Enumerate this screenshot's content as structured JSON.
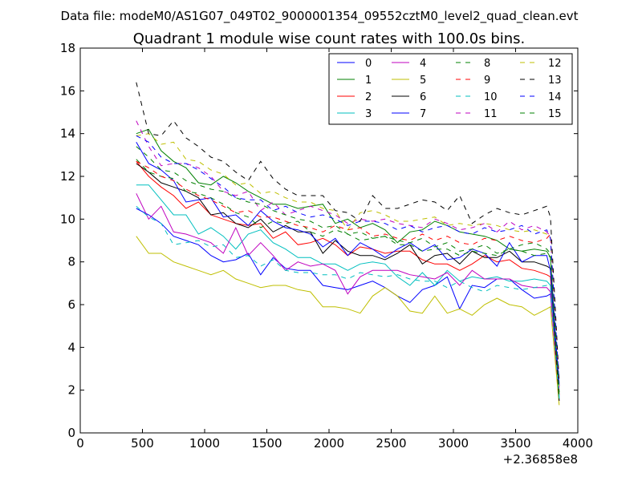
{
  "suptitle": "Data file: modeM0/AS1G07_049T02_9000001354_09552cztM0_level2_quad_clean.evt",
  "chart_data": {
    "type": "line",
    "title": "Quadrant 1 module wise count rates with 100.0s bins.",
    "xlabel": "",
    "ylabel": "",
    "x_offset_label": "+2.36858e8",
    "xlim": [
      0,
      4000
    ],
    "ylim": [
      0,
      18
    ],
    "xticks": [
      0,
      500,
      1000,
      1500,
      2000,
      2500,
      3000,
      3500,
      4000
    ],
    "yticks": [
      0,
      2,
      4,
      6,
      8,
      10,
      12,
      14,
      16,
      18
    ],
    "grid": false,
    "legend_position": "top-right",
    "x": [
      450,
      550,
      650,
      750,
      850,
      950,
      1050,
      1150,
      1250,
      1350,
      1450,
      1550,
      1650,
      1750,
      1850,
      1950,
      2050,
      2150,
      2250,
      2350,
      2450,
      2550,
      2650,
      2750,
      2850,
      2950,
      3050,
      3150,
      3250,
      3350,
      3450,
      3550,
      3650,
      3750,
      3780,
      3850
    ],
    "series": [
      {
        "name": "0",
        "color": "#0000ff",
        "dash": "solid",
        "values": [
          10.5,
          10.2,
          9.8,
          9.2,
          9.0,
          8.8,
          8.3,
          8.0,
          8.1,
          8.4,
          7.4,
          8.2,
          7.7,
          7.6,
          7.6,
          6.9,
          6.8,
          6.7,
          6.9,
          7.1,
          6.8,
          6.4,
          6.1,
          6.7,
          6.9,
          7.3,
          5.8,
          6.9,
          6.8,
          7.2,
          7.2,
          6.7,
          6.3,
          6.4,
          6.5,
          1.7
        ]
      },
      {
        "name": "1",
        "color": "#008000",
        "dash": "solid",
        "values": [
          14.0,
          14.2,
          13.2,
          12.7,
          12.4,
          11.7,
          11.6,
          12.0,
          11.7,
          11.3,
          11.0,
          10.7,
          10.7,
          10.5,
          10.6,
          10.7,
          9.8,
          10.0,
          9.6,
          9.8,
          9.5,
          8.9,
          9.4,
          9.5,
          9.9,
          9.7,
          9.4,
          9.3,
          9.2,
          9.0,
          8.6,
          8.5,
          8.6,
          8.5,
          8.2,
          1.9
        ]
      },
      {
        "name": "2",
        "color": "#ff0000",
        "dash": "solid",
        "values": [
          12.7,
          12.0,
          11.5,
          11.1,
          10.5,
          10.8,
          10.2,
          10.0,
          9.8,
          9.7,
          9.8,
          9.1,
          9.4,
          8.8,
          8.9,
          9.1,
          8.8,
          8.3,
          8.7,
          8.6,
          8.4,
          8.5,
          8.5,
          8.1,
          7.9,
          7.9,
          7.6,
          7.9,
          8.3,
          8.0,
          8.1,
          7.7,
          7.6,
          7.4,
          7.3,
          1.8
        ]
      },
      {
        "name": "3",
        "color": "#00bfbf",
        "dash": "solid",
        "values": [
          11.6,
          11.6,
          10.9,
          10.2,
          10.2,
          9.3,
          9.6,
          9.2,
          8.6,
          9.3,
          9.5,
          8.9,
          8.6,
          8.2,
          8.2,
          7.9,
          7.9,
          7.6,
          7.9,
          8.0,
          7.9,
          7.3,
          6.9,
          7.5,
          6.9,
          7.6,
          7.1,
          7.3,
          7.2,
          7.3,
          7.1,
          7.1,
          7.2,
          7.1,
          6.9,
          1.6
        ]
      },
      {
        "name": "4",
        "color": "#bf00bf",
        "dash": "solid",
        "values": [
          11.2,
          10.0,
          10.6,
          9.4,
          9.3,
          9.1,
          8.9,
          8.4,
          9.6,
          8.3,
          8.9,
          8.3,
          7.6,
          8.0,
          7.8,
          7.9,
          7.6,
          6.5,
          7.3,
          7.6,
          7.6,
          7.6,
          7.4,
          7.3,
          7.2,
          7.5,
          6.9,
          7.6,
          7.2,
          7.2,
          7.2,
          6.9,
          6.8,
          6.8,
          6.6,
          1.5
        ]
      },
      {
        "name": "5",
        "color": "#bfbf00",
        "dash": "solid",
        "values": [
          9.2,
          8.4,
          8.4,
          8.0,
          7.8,
          7.6,
          7.4,
          7.6,
          7.2,
          7.0,
          6.8,
          6.9,
          6.9,
          6.7,
          6.6,
          5.9,
          5.9,
          5.8,
          5.6,
          6.4,
          6.8,
          6.4,
          5.7,
          5.6,
          6.4,
          5.6,
          5.8,
          5.5,
          6.0,
          6.3,
          6.0,
          5.9,
          5.5,
          5.8,
          5.9,
          1.3
        ]
      },
      {
        "name": "6",
        "color": "#000000",
        "dash": "solid",
        "values": [
          12.6,
          12.2,
          11.7,
          11.5,
          11.3,
          11.0,
          10.2,
          10.3,
          9.8,
          9.6,
          10.0,
          9.4,
          9.7,
          9.4,
          9.4,
          8.4,
          9.0,
          8.5,
          8.3,
          8.3,
          8.1,
          8.4,
          8.8,
          7.9,
          8.3,
          8.4,
          7.9,
          8.5,
          8.2,
          8.2,
          8.5,
          8.0,
          8.0,
          7.8,
          7.7,
          1.5
        ]
      },
      {
        "name": "7",
        "color": "#0000ff",
        "dash": "solid",
        "values": [
          13.6,
          12.6,
          12.3,
          11.8,
          10.8,
          10.9,
          11.0,
          10.1,
          10.2,
          9.7,
          10.4,
          9.9,
          9.6,
          9.5,
          9.3,
          8.7,
          9.1,
          8.3,
          8.9,
          8.6,
          8.2,
          8.6,
          8.9,
          8.5,
          8.8,
          8.1,
          8.2,
          8.6,
          8.4,
          7.8,
          8.9,
          8.0,
          8.3,
          8.3,
          7.6,
          2.2
        ]
      },
      {
        "name": "8",
        "color": "#008000",
        "dash": "dashed",
        "values": [
          12.8,
          12.2,
          12.0,
          11.9,
          11.3,
          11.2,
          11.0,
          10.7,
          10.3,
          10.1,
          9.6,
          9.9,
          9.8,
          9.9,
          9.4,
          9.2,
          9.5,
          9.3,
          9.0,
          9.1,
          9.2,
          8.8,
          8.8,
          8.5,
          8.6,
          8.6,
          8.3,
          8.5,
          8.4,
          8.3,
          8.6,
          8.8,
          8.9,
          8.6,
          8.4,
          1.7
        ]
      },
      {
        "name": "9",
        "color": "#ff0000",
        "dash": "dashed",
        "values": [
          12.7,
          12.4,
          12.0,
          11.8,
          11.4,
          11.1,
          10.9,
          10.6,
          10.3,
          10.4,
          10.1,
          10.1,
          9.9,
          9.7,
          9.6,
          9.4,
          9.7,
          9.5,
          9.6,
          9.2,
          9.3,
          9.1,
          9.0,
          9.3,
          9.0,
          9.2,
          8.9,
          8.8,
          9.1,
          9.0,
          9.2,
          9.0,
          8.9,
          9.1,
          9.3,
          2.0
        ]
      },
      {
        "name": "10",
        "color": "#00bfbf",
        "dash": "dashed",
        "values": [
          10.6,
          10.1,
          9.8,
          8.8,
          8.9,
          9.0,
          8.7,
          8.8,
          8.2,
          8.3,
          7.8,
          8.1,
          7.6,
          7.5,
          7.5,
          7.4,
          7.4,
          7.2,
          7.5,
          7.4,
          7.3,
          7.4,
          7.2,
          7.1,
          7.1,
          6.8,
          7.1,
          6.8,
          6.6,
          6.9,
          6.8,
          6.7,
          6.8,
          6.9,
          6.8,
          1.6
        ]
      },
      {
        "name": "11",
        "color": "#bf00bf",
        "dash": "dashed",
        "values": [
          14.6,
          13.4,
          12.5,
          12.6,
          12.6,
          12.4,
          12.0,
          11.3,
          11.1,
          11.3,
          10.4,
          10.8,
          10.2,
          10.4,
          10.6,
          10.4,
          10.2,
          9.8,
          10.0,
          9.9,
          10.0,
          9.8,
          9.7,
          9.6,
          10.0,
          9.8,
          9.5,
          9.6,
          9.8,
          9.4,
          9.9,
          9.5,
          9.7,
          9.4,
          9.2,
          2.1
        ]
      },
      {
        "name": "12",
        "color": "#bfbf00",
        "dash": "dashed",
        "values": [
          13.9,
          14.0,
          13.5,
          13.6,
          12.8,
          12.7,
          12.3,
          12.1,
          11.6,
          11.7,
          11.2,
          11.3,
          11.0,
          10.8,
          10.8,
          10.5,
          10.4,
          9.5,
          10.3,
          10.4,
          10.2,
          9.9,
          9.9,
          10.0,
          10.1,
          9.7,
          9.8,
          9.7,
          9.8,
          9.7,
          9.5,
          9.4,
          9.5,
          9.3,
          9.2,
          2.0
        ]
      },
      {
        "name": "13",
        "color": "#000000",
        "dash": "dashed",
        "values": [
          16.4,
          14.0,
          13.9,
          14.6,
          13.8,
          13.4,
          12.9,
          12.7,
          12.2,
          11.8,
          12.7,
          11.9,
          11.4,
          11.1,
          11.1,
          11.1,
          10.4,
          10.3,
          9.9,
          11.1,
          10.5,
          10.5,
          10.7,
          10.9,
          10.8,
          10.4,
          11.1,
          9.8,
          10.2,
          10.5,
          10.3,
          10.2,
          10.4,
          10.6,
          10.1,
          2.4
        ]
      },
      {
        "name": "14",
        "color": "#0000ff",
        "dash": "dashed",
        "values": [
          13.9,
          13.6,
          12.9,
          12.6,
          12.6,
          12.3,
          11.9,
          11.5,
          11.0,
          10.9,
          10.9,
          10.4,
          10.6,
          10.3,
          10.1,
          10.2,
          10.0,
          9.7,
          9.9,
          9.9,
          9.8,
          9.5,
          9.7,
          9.4,
          9.6,
          9.7,
          9.4,
          9.3,
          9.6,
          9.4,
          9.5,
          9.7,
          9.3,
          9.5,
          9.1,
          2.3
        ]
      },
      {
        "name": "15",
        "color": "#008000",
        "dash": "dashed",
        "values": [
          13.4,
          12.9,
          12.3,
          12.2,
          11.8,
          11.6,
          11.4,
          11.3,
          11.0,
          10.8,
          10.7,
          10.4,
          10.2,
          10.0,
          9.9,
          9.6,
          9.7,
          9.3,
          9.4,
          9.1,
          9.2,
          9.0,
          8.9,
          9.1,
          8.7,
          8.9,
          8.5,
          8.6,
          8.8,
          8.4,
          8.6,
          8.5,
          8.3,
          8.4,
          8.2,
          1.9
        ]
      }
    ]
  }
}
